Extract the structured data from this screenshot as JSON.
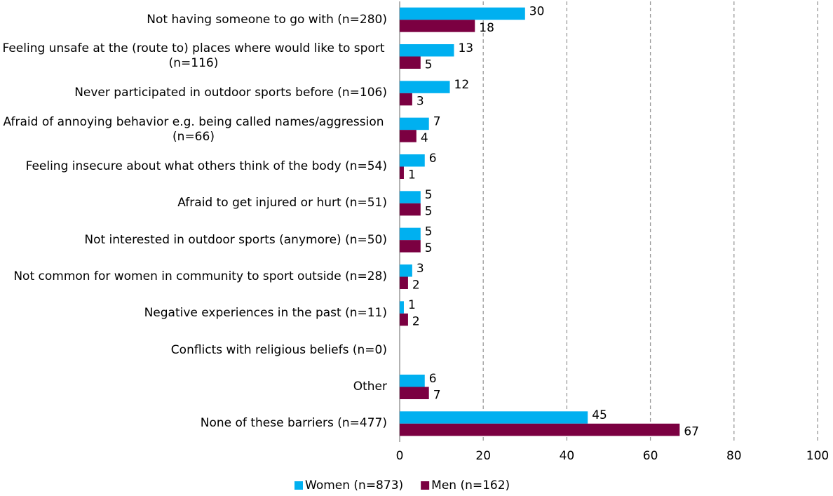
{
  "chart_data": {
    "type": "hbar",
    "categories": [
      "Not having someone to go with (n=280)",
      "Feeling unsafe at the (route to) places where would like to sport (n=116)",
      "Never participated in outdoor sports before (n=106)",
      "Afraid of annoying behavior e.g. being called names/aggression (n=66)",
      "Feeling insecure about what others think of the body (n=54)",
      "Afraid to get injured or hurt (n=51)",
      "Not interested in outdoor sports (anymore) (n=50)",
      "Not common for women in community to sport outside (n=28)",
      "Negative experiences in the past (n=11)",
      "Conflicts with religious beliefs (n=0)",
      "Other",
      "None of these barriers (n=477)"
    ],
    "series": [
      {
        "name": "Women (n=873)",
        "color": "#00b0f0",
        "values": [
          30,
          13,
          12,
          7,
          6,
          5,
          5,
          3,
          1,
          0,
          6,
          45
        ],
        "value_labels": [
          "30",
          "13",
          "12",
          "7",
          "6",
          "5",
          "5",
          "3",
          "1",
          null,
          "6",
          "45"
        ]
      },
      {
        "name": "Men (n=162)",
        "color": "#7b0041",
        "values": [
          18,
          5,
          3,
          4,
          1,
          5,
          5,
          2,
          2,
          0,
          7,
          67
        ],
        "value_labels": [
          "18",
          "5",
          "3",
          "4",
          "1",
          "5",
          "5",
          "2",
          "2",
          null,
          "7",
          "67"
        ]
      }
    ],
    "xlim": [
      0,
      100
    ],
    "xticks": [
      0,
      20,
      40,
      60,
      80,
      100
    ],
    "grid": true,
    "legend": "bottom"
  }
}
